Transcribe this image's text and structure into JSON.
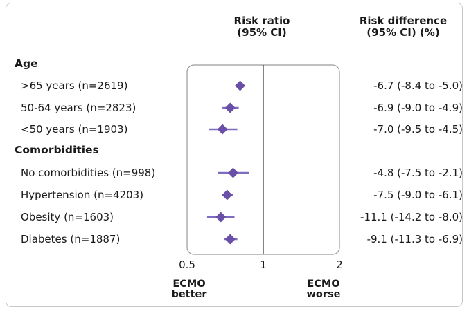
{
  "header": {
    "risk_ratio_line1": "Risk ratio",
    "risk_ratio_line2": "(95% CI)",
    "risk_diff_line1": "Risk difference",
    "risk_diff_line2": "(95% CI) (%)"
  },
  "sections": [
    {
      "title": "Age",
      "rows": [
        {
          "label": ">65 years (n=2619)",
          "rd": "-6.7 (-8.4 to -5.0)"
        },
        {
          "label": "50-64 years (n=2823)",
          "rd": "-6.9 (-9.0 to -4.9)"
        },
        {
          "label": "<50 years (n=1903)",
          "rd": "-7.0 (-9.5 to -4.5)"
        }
      ]
    },
    {
      "title": "Comorbidities",
      "rows": [
        {
          "label": "No comorbidities (n=998)",
          "rd": "-4.8 (-7.5 to -2.1)"
        },
        {
          "label": "Hypertension (n=4203)",
          "rd": "-7.5 (-9.0 to -6.1)"
        },
        {
          "label": "Obesity (n=1603)",
          "rd": "-11.1 (-14.2 to -8.0)"
        },
        {
          "label": "Diabetes (n=1887)",
          "rd": "-9.1 (-11.3 to -6.9)"
        }
      ]
    }
  ],
  "footer": {
    "left_line1": "ECMO",
    "left_line2": "better",
    "right_line1": "ECMO",
    "right_line2": "worse"
  },
  "colors": {
    "marker": "#6a4fa8",
    "ci_line": "#7f6bc0",
    "reference_line": "#333333",
    "panel_border": "#9a9a9a"
  },
  "chart_data": {
    "type": "forest",
    "xscale": "log",
    "xlim": [
      0.5,
      2
    ],
    "xticks": [
      0.5,
      1,
      2
    ],
    "xtick_labels": [
      "0.5",
      "1",
      "2"
    ],
    "reference_value": 1,
    "series": [
      {
        "label": ">65 years (n=2619)",
        "rr": 0.81,
        "lo": 0.78,
        "hi": 0.84
      },
      {
        "label": "50-64 years (n=2823)",
        "rr": 0.74,
        "lo": 0.69,
        "hi": 0.8
      },
      {
        "label": "<50 years (n=1903)",
        "rr": 0.69,
        "lo": 0.61,
        "hi": 0.79
      },
      {
        "label": "No comorbidities (n=998)",
        "rr": 0.76,
        "lo": 0.66,
        "hi": 0.88
      },
      {
        "label": "Hypertension (n=4203)",
        "rr": 0.72,
        "lo": 0.69,
        "hi": 0.76
      },
      {
        "label": "Obesity (n=1603)",
        "rr": 0.68,
        "lo": 0.6,
        "hi": 0.77
      },
      {
        "label": "Diabetes (n=1887)",
        "rr": 0.74,
        "lo": 0.7,
        "hi": 0.79
      }
    ]
  }
}
